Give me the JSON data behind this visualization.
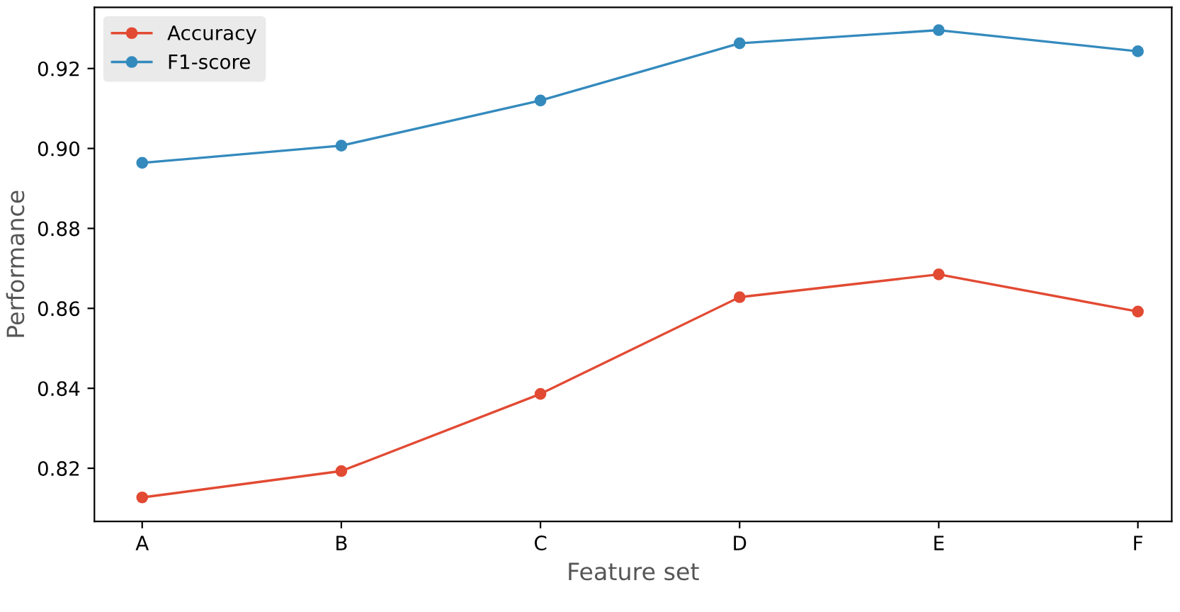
{
  "chart_data": {
    "type": "line",
    "xlabel": "Feature set",
    "ylabel": "Performance",
    "categories": [
      "A",
      "B",
      "C",
      "D",
      "E",
      "F"
    ],
    "series": [
      {
        "name": "Accuracy",
        "color": "#e24a33",
        "values": [
          0.8127,
          0.8193,
          0.8386,
          0.8628,
          0.8685,
          0.8592
        ]
      },
      {
        "name": "F1-score",
        "color": "#348abd",
        "values": [
          0.8964,
          0.9007,
          0.912,
          0.9263,
          0.9296,
          0.9243
        ]
      }
    ],
    "ylim": [
      0.8067,
      0.9353
    ],
    "yticks": [
      0.82,
      0.84,
      0.86,
      0.88,
      {
        "value": 0.9,
        "label": "0.90"
      },
      0.92
    ],
    "grid": false,
    "legend": "top left",
    "marker": "circle",
    "line_style": "solid"
  }
}
